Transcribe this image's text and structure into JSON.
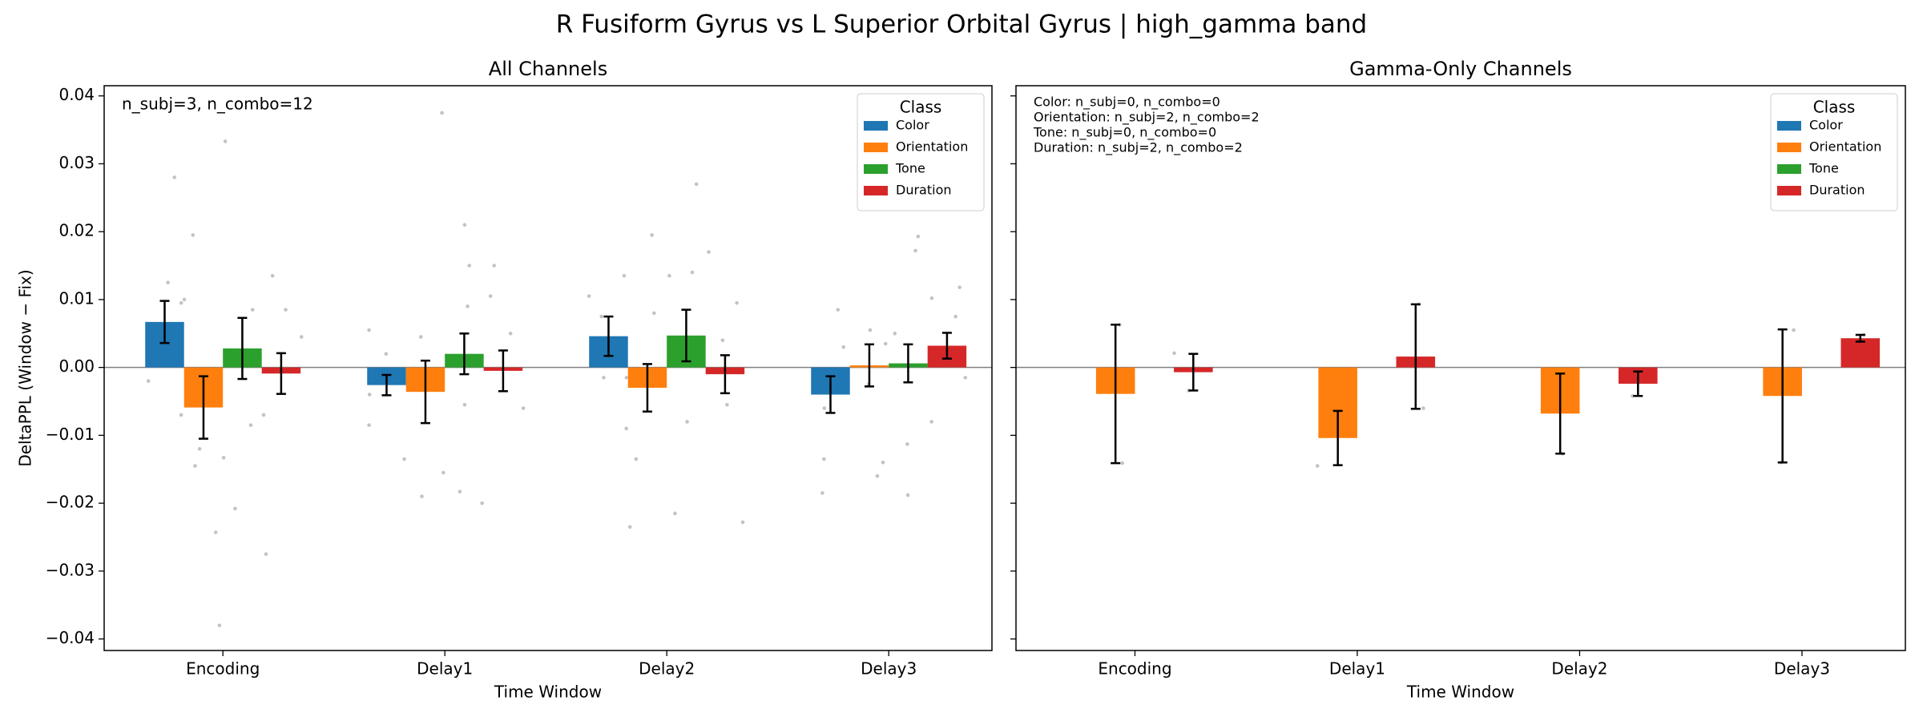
{
  "title": "R Fusiform Gyrus vs L Superior Orbital Gyrus  |  high_gamma band",
  "chart_data": [
    {
      "type": "bar",
      "title": "All Channels",
      "xlabel": "Time Window",
      "ylabel": "DeltaPPL (Window − Fix)",
      "categories": [
        "Encoding",
        "Delay1",
        "Delay2",
        "Delay3"
      ],
      "annotation": [
        "n_subj=3, n_combo=12"
      ],
      "legend_title": "Class",
      "legend": "upper right",
      "ylim": [
        -0.0417,
        0.0415
      ],
      "yticks": [
        {
          "value": -0.04,
          "label": "−0.04"
        },
        {
          "value": -0.03,
          "label": "−0.03"
        },
        {
          "value": -0.02,
          "label": "−0.02"
        },
        {
          "value": -0.01,
          "label": "−0.01"
        },
        {
          "value": 0,
          "label": "0.00"
        },
        0.01,
        0.02,
        0.03,
        0.04
      ],
      "show_ytick_labels": true,
      "series": [
        {
          "name": "Color",
          "color": "#1f77b4",
          "values": [
            0.0067,
            -0.0026,
            0.0046,
            -0.004
          ],
          "errors": [
            0.0031,
            0.0015,
            0.0029,
            0.0027
          ],
          "points": [
            [
              0.028,
              0.0125,
              0.0095,
              0.005,
              -0.002,
              -0.007
            ],
            [
              0.0055,
              0.002,
              -0.004,
              -0.0085,
              -0.0135
            ],
            [
              0.0135,
              0.0105,
              0.0075,
              -0.0015,
              -0.009
            ],
            [
              0.0085,
              0.003,
              -0.006,
              -0.0135,
              -0.0185
            ]
          ]
        },
        {
          "name": "Orientation",
          "color": "#ff7f0e",
          "values": [
            -0.0059,
            -0.0036,
            -0.003,
            0.0003
          ],
          "errors": [
            0.0046,
            0.0046,
            0.0035,
            0.0031
          ],
          "points": [
            [
              0.0195,
              0.01,
              -0.012,
              -0.0145,
              -0.0243,
              -0.038
            ],
            [
              0.0375,
              0.0045,
              -0.0015,
              -0.0155,
              -0.019
            ],
            [
              0.0195,
              0.008,
              -0.0015,
              -0.0135,
              -0.0235
            ],
            [
              0.0055,
              0.0035,
              -0.0025,
              -0.014,
              -0.016
            ]
          ]
        },
        {
          "name": "Tone",
          "color": "#2ca02c",
          "values": [
            0.0028,
            0.002,
            0.0047,
            0.0006
          ],
          "errors": [
            0.0045,
            0.003,
            0.0038,
            0.0028
          ],
          "points": [
            [
              0.0333,
              0.0085,
              -0.0085,
              -0.0133,
              -0.0208
            ],
            [
              0.021,
              0.015,
              0.009,
              -0.0055,
              -0.0183
            ],
            [
              0.027,
              0.014,
              0.0135,
              -0.008,
              -0.0215
            ],
            [
              0.0193,
              0.0172,
              0.005,
              -0.0113,
              -0.0188
            ]
          ]
        },
        {
          "name": "Duration",
          "color": "#d62728",
          "values": [
            -0.0009,
            -0.0005,
            -0.001,
            0.0032
          ],
          "errors": [
            0.003,
            0.003,
            0.0028,
            0.0019
          ],
          "points": [
            [
              0.0135,
              0.0085,
              0.0045,
              -0.007,
              -0.0275
            ],
            [
              0.015,
              0.0105,
              0.005,
              -0.006,
              -0.02
            ],
            [
              0.017,
              0.0095,
              0.004,
              -0.0055,
              -0.0228
            ],
            [
              0.0118,
              0.0102,
              0.0075,
              -0.0015,
              -0.008
            ]
          ]
        }
      ]
    },
    {
      "type": "bar",
      "title": "Gamma-Only Channels",
      "xlabel": "Time Window",
      "categories": [
        "Encoding",
        "Delay1",
        "Delay2",
        "Delay3"
      ],
      "annotation": [
        "Color: n_subj=0, n_combo=0",
        "Orientation: n_subj=2, n_combo=2",
        "Tone: n_subj=0, n_combo=0",
        "Duration: n_subj=2, n_combo=2"
      ],
      "legend_title": "Class",
      "legend": "upper right",
      "ylim": [
        -0.0417,
        0.0415
      ],
      "yticks": [
        -0.04,
        -0.03,
        -0.02,
        -0.01,
        0,
        0.01,
        0.02,
        0.03,
        0.04
      ],
      "show_ytick_labels": false,
      "series": [
        {
          "name": "Color",
          "color": "#1f77b4",
          "values": [
            null,
            null,
            null,
            null
          ],
          "errors": [
            null,
            null,
            null,
            null
          ],
          "points": [
            [],
            [],
            [],
            []
          ]
        },
        {
          "name": "Orientation",
          "color": "#ff7f0e",
          "values": [
            -0.0039,
            -0.0104,
            -0.0068,
            -0.0042
          ],
          "errors": [
            0.0102,
            0.004,
            0.0059,
            0.0098
          ],
          "points": [
            [
              0.0063,
              -0.0141
            ],
            [
              -0.0063,
              -0.0145
            ],
            [
              -0.0009,
              -0.0127
            ],
            [
              0.0055,
              -0.014
            ]
          ]
        },
        {
          "name": "Tone",
          "color": "#2ca02c",
          "values": [
            null,
            null,
            null,
            null
          ],
          "errors": [
            null,
            null,
            null,
            null
          ],
          "points": [
            [],
            [],
            [],
            []
          ]
        },
        {
          "name": "Duration",
          "color": "#d62728",
          "values": [
            -0.0007,
            0.0016,
            -0.0024,
            0.0043
          ],
          "errors": [
            0.0027,
            0.0077,
            0.0018,
            0.0005
          ],
          "points": [
            [
              0.0021,
              -0.0034
            ],
            [
              0.0093,
              -0.006
            ],
            [
              -0.0006,
              -0.0042
            ],
            [
              0.0048,
              0.0038
            ]
          ]
        }
      ]
    }
  ]
}
